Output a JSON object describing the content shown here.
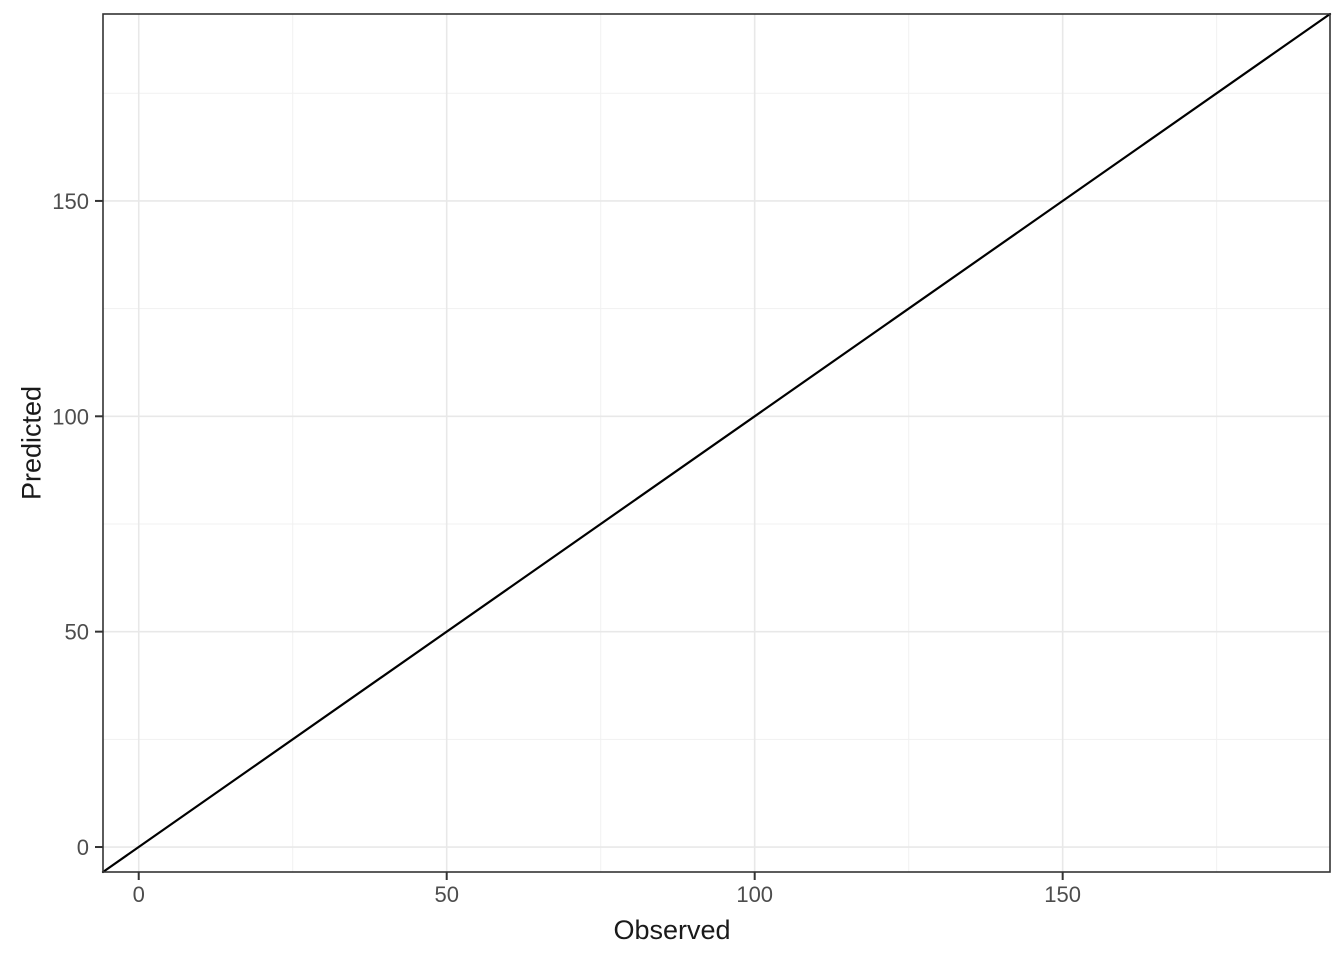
{
  "chart_data": {
    "type": "line",
    "title": "",
    "xlabel": "Observed",
    "ylabel": "Predicted",
    "xlim": [
      -5.8,
      193.4
    ],
    "ylim": [
      -5.8,
      193.4
    ],
    "x_major_ticks": [
      0,
      50,
      100,
      150
    ],
    "y_major_ticks": [
      0,
      50,
      100,
      150
    ],
    "x_tick_labels": [
      "0",
      "50",
      "100",
      "150"
    ],
    "y_tick_labels": [
      "0",
      "50",
      "100",
      "150"
    ],
    "x_minor_ticks": [
      25,
      75,
      125,
      175
    ],
    "y_minor_ticks": [
      25,
      75,
      125,
      175
    ],
    "grid": "on",
    "legend": "none",
    "series": [
      {
        "name": "identity-line",
        "description": "y = x reference line (abline, slope 1, intercept 0)",
        "x": [
          -5.8,
          193.4
        ],
        "y": [
          -5.8,
          193.4
        ],
        "color": "#000000"
      }
    ],
    "colors": {
      "panel_background": "#ffffff",
      "panel_border": "#333333",
      "grid_major": "#e8e8e8",
      "grid_minor": "#f1f1f1",
      "tick_mark": "#333333",
      "tick_label": "#4d4d4d",
      "axis_title": "#1a1a1a",
      "line": "#000000"
    }
  }
}
